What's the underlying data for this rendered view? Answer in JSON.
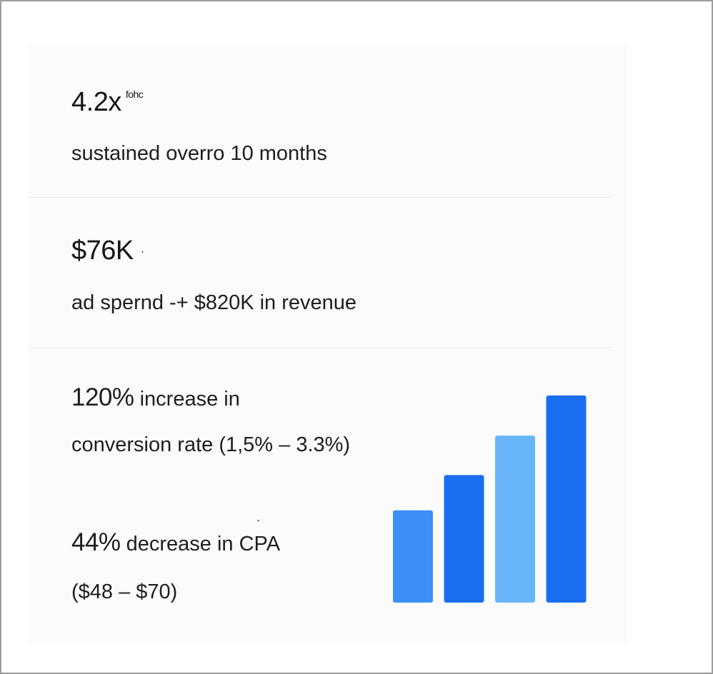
{
  "metrics": {
    "roas": {
      "value": "4.2x",
      "superscript": "fohc",
      "caption": "sustained overro 10 months"
    },
    "spend": {
      "value": "$76K",
      "mark": "·",
      "caption": "ad spernd -+ $820K in revenue"
    },
    "conversion": {
      "lead": "120%",
      "text": " increase in",
      "line2": "conversion rate (1,5% – 3.3%)"
    },
    "cpa": {
      "lead": "44%",
      "text": " decrease in CPA",
      "line2": "($48 – $70)"
    }
  },
  "chart_data": {
    "type": "bar",
    "categories": [
      "",
      "",
      "",
      ""
    ],
    "values": [
      131,
      181,
      237,
      294
    ],
    "colors": [
      "#3b8ff5",
      "#1a6ef0",
      "#69b5fa",
      "#1a6ef0"
    ],
    "title": "",
    "xlabel": "",
    "ylabel": "",
    "ylim": [
      0,
      300
    ],
    "grid": false
  }
}
